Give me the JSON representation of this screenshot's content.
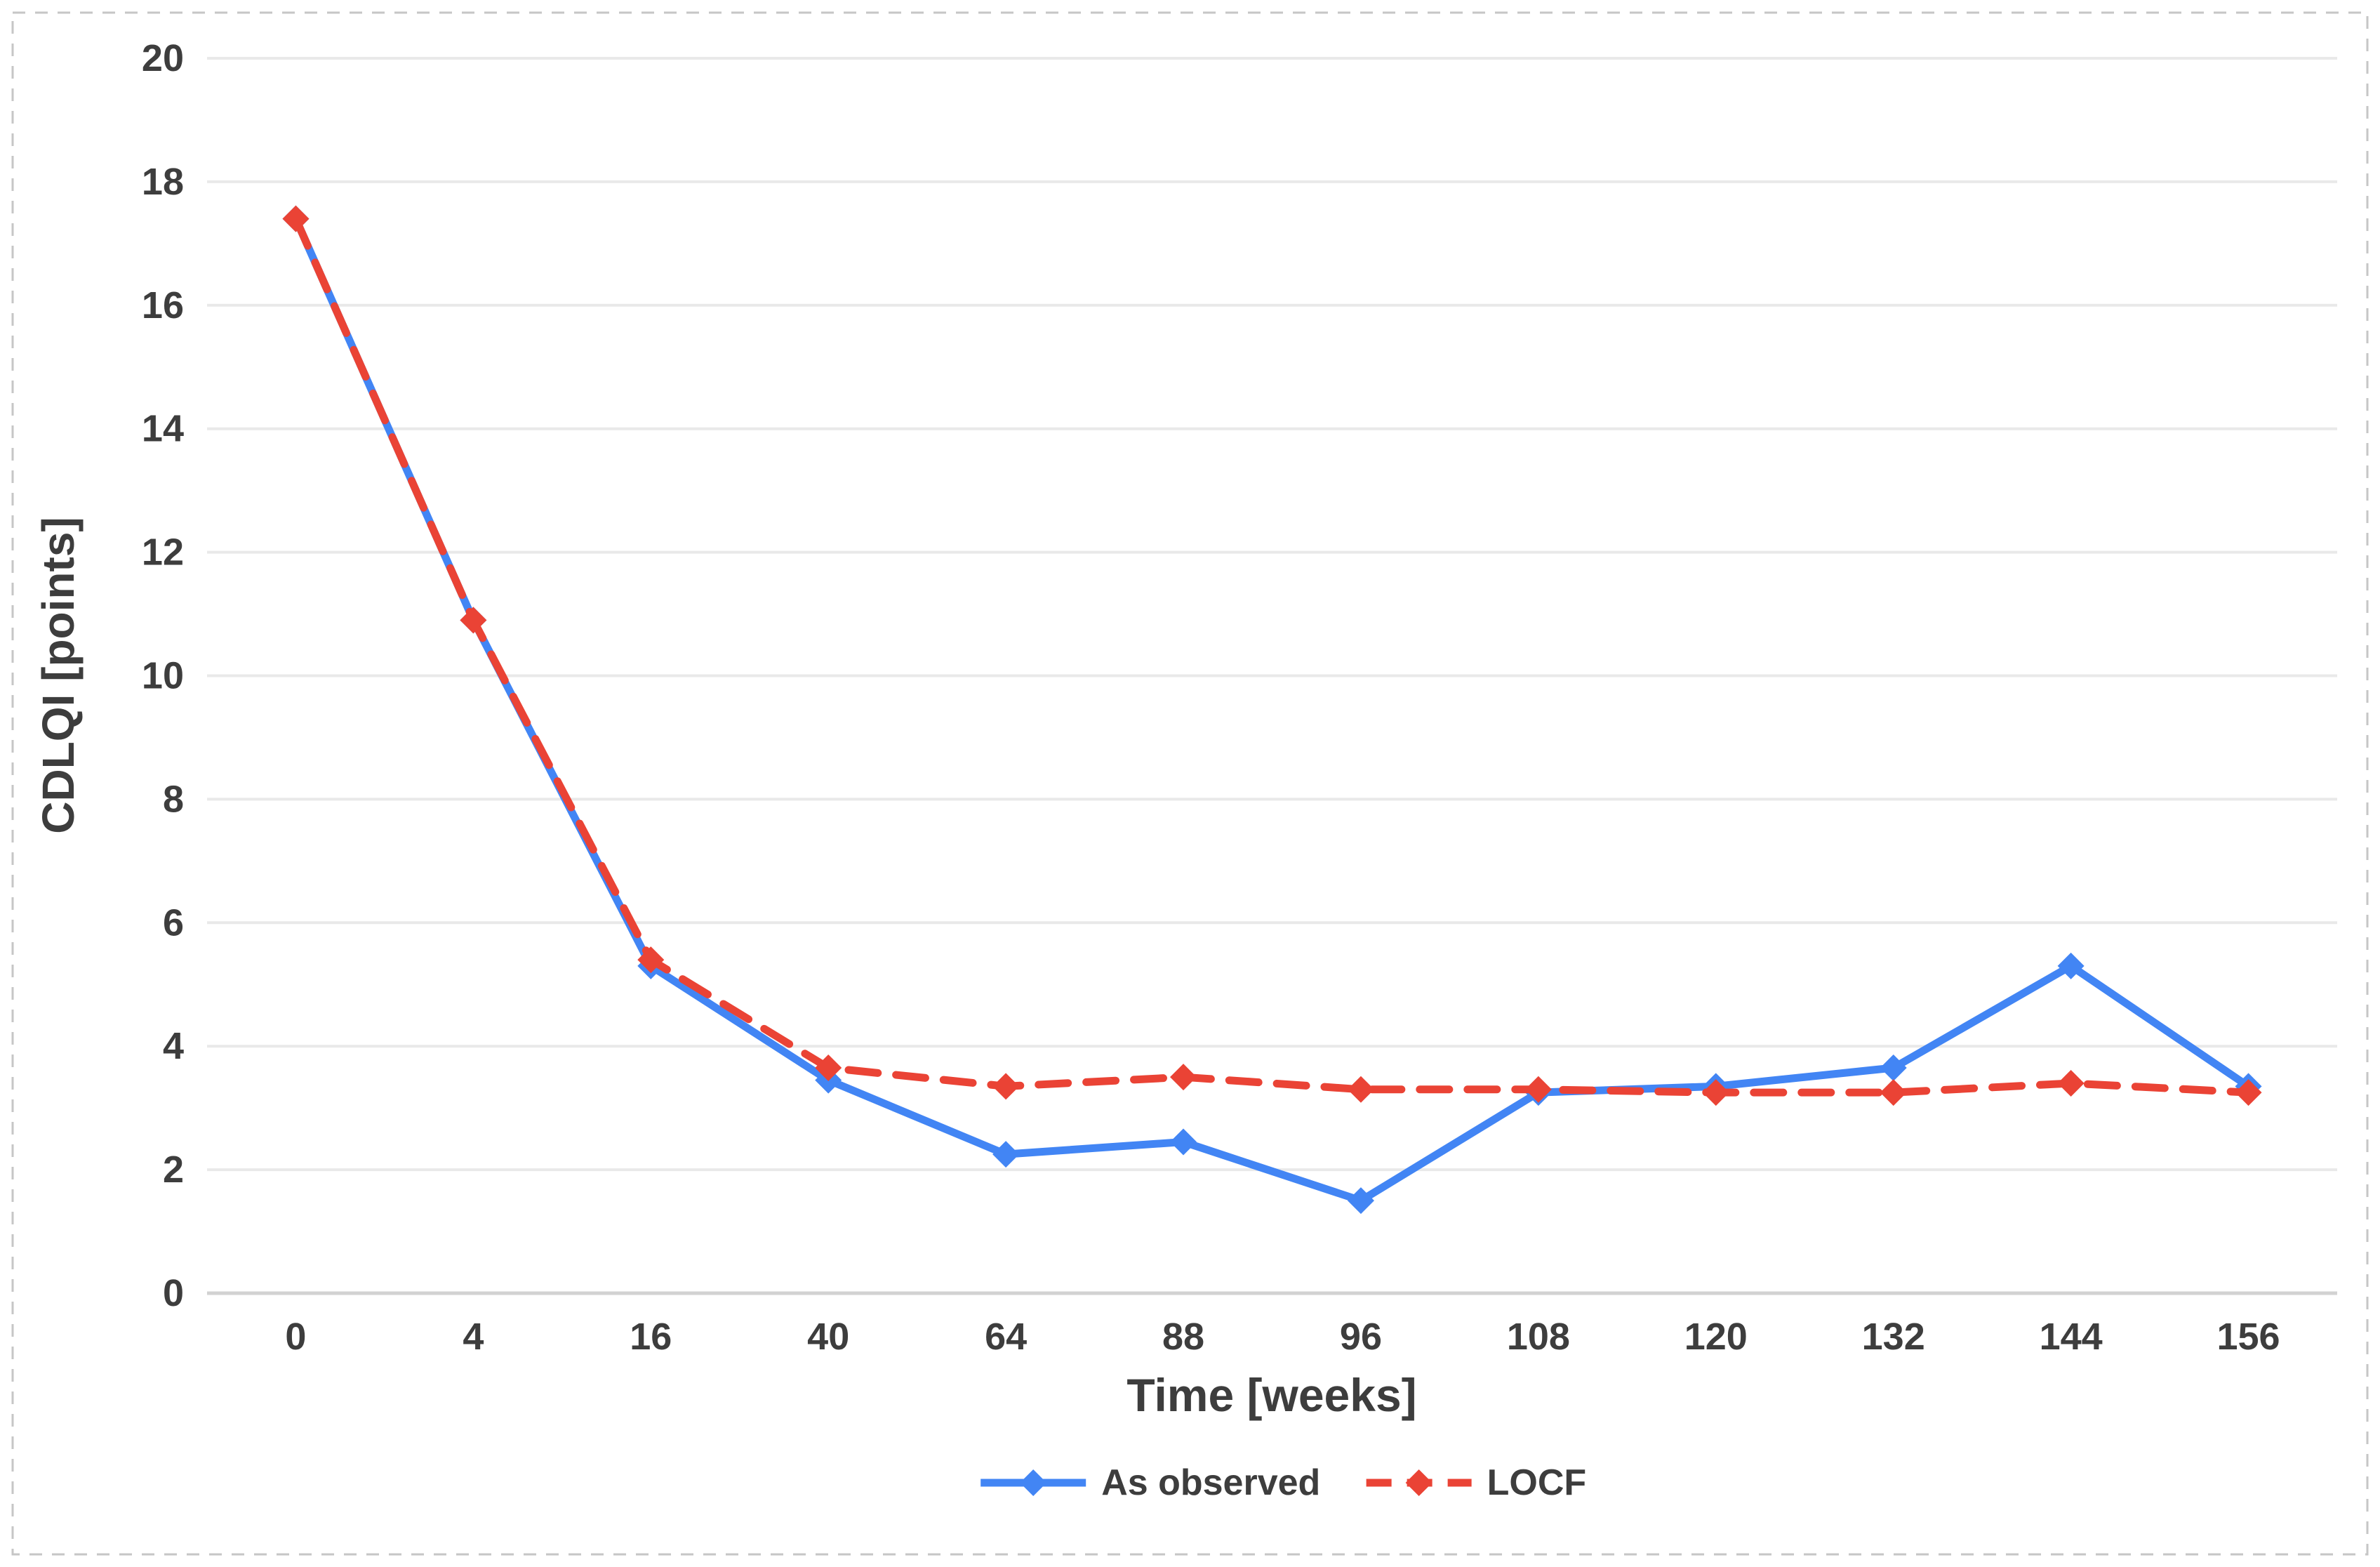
{
  "figure": {
    "background": "#ffffff",
    "border_color": "#c6c6c6",
    "gridline_color": "#e9e9e9",
    "axisline_color": "#d2d2d2",
    "label_color": "#3d3d3d"
  },
  "chart_data": {
    "type": "line",
    "title": "",
    "xlabel": "Time [weeks]",
    "ylabel": "CDLQI [points]",
    "categories": [
      "0",
      "4",
      "16",
      "40",
      "64",
      "88",
      "96",
      "108",
      "120",
      "132",
      "144",
      "156"
    ],
    "ylim": [
      0,
      20
    ],
    "ytick_step": 2,
    "grid": true,
    "legend_position": "bottom",
    "series": [
      {
        "name": "As observed",
        "color": "#4285F4",
        "style": "solid",
        "marker": "diamond",
        "values": [
          17.4,
          10.9,
          5.3,
          3.45,
          2.25,
          2.45,
          1.5,
          3.25,
          3.35,
          3.65,
          5.3,
          3.35
        ]
      },
      {
        "name": "LOCF",
        "color": "#EA4335",
        "style": "dashed",
        "marker": "diamond",
        "values": [
          17.4,
          10.9,
          5.4,
          3.65,
          3.35,
          3.5,
          3.3,
          3.3,
          3.25,
          3.25,
          3.4,
          3.25
        ]
      }
    ]
  }
}
